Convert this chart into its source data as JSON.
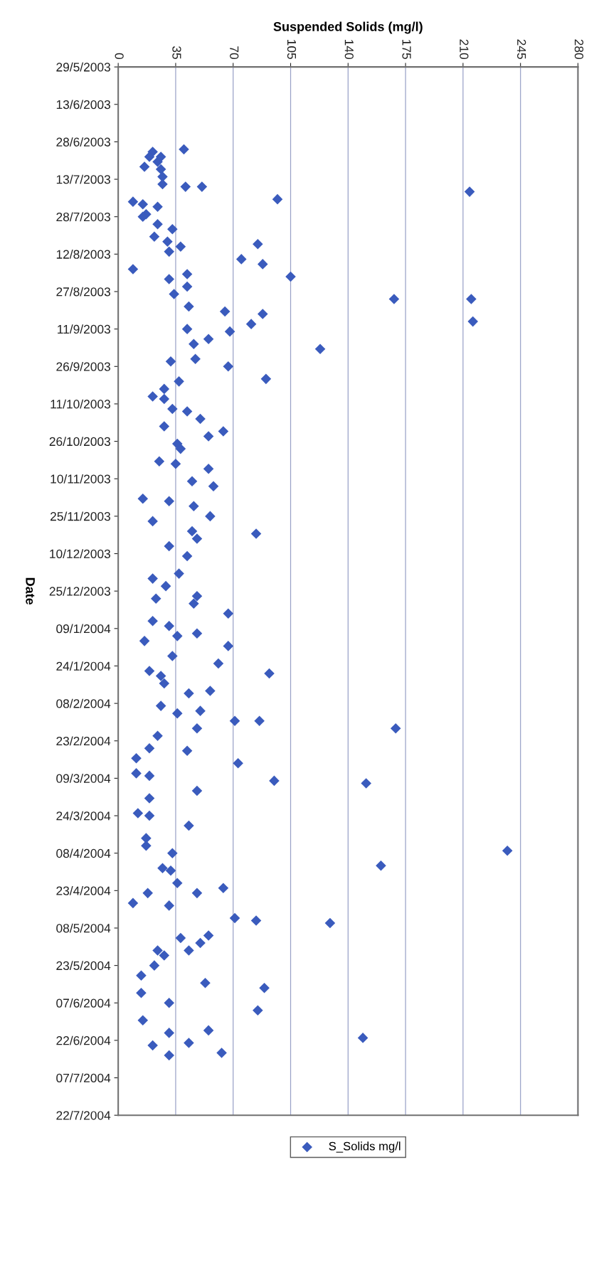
{
  "chart_data": {
    "type": "scatter",
    "orientation": "horizontal",
    "xlabel": "Suspended Solids (mg/l)",
    "ylabel": "Date",
    "xlim": [
      0,
      280
    ],
    "xticks": [
      0,
      35,
      70,
      105,
      140,
      175,
      210,
      245,
      280
    ],
    "ylim": [
      "2004-07-22",
      "2003-05-29"
    ],
    "yticks": [
      {
        "value": "2003-05-29",
        "label": "29/5/2003"
      },
      {
        "value": "2003-06-13",
        "label": "13/6/2003"
      },
      {
        "value": "2003-06-28",
        "label": "28/6/2003"
      },
      {
        "value": "2003-07-13",
        "label": "13/7/2003"
      },
      {
        "value": "2003-07-28",
        "label": "28/7/2003"
      },
      {
        "value": "2003-08-12",
        "label": "12/8/2003"
      },
      {
        "value": "2003-08-27",
        "label": "27/8/2003"
      },
      {
        "value": "2003-09-11",
        "label": "11/9/2003"
      },
      {
        "value": "2003-09-26",
        "label": "26/9/2003"
      },
      {
        "value": "2003-10-11",
        "label": "11/10/2003"
      },
      {
        "value": "2003-10-26",
        "label": "26/10/2003"
      },
      {
        "value": "2003-11-10",
        "label": "10/11/2003"
      },
      {
        "value": "2003-11-25",
        "label": "25/11/2003"
      },
      {
        "value": "2003-12-10",
        "label": "10/12/2003"
      },
      {
        "value": "2003-12-25",
        "label": "25/12/2003"
      },
      {
        "value": "2004-01-09",
        "label": "09/1/2004"
      },
      {
        "value": "2004-01-24",
        "label": "24/1/2004"
      },
      {
        "value": "2004-02-08",
        "label": "08/2/2004"
      },
      {
        "value": "2004-02-23",
        "label": "23/2/2004"
      },
      {
        "value": "2004-03-09",
        "label": "09/3/2004"
      },
      {
        "value": "2004-03-24",
        "label": "24/3/2004"
      },
      {
        "value": "2004-04-08",
        "label": "08/4/2004"
      },
      {
        "value": "2004-04-23",
        "label": "23/4/2004"
      },
      {
        "value": "2004-05-08",
        "label": "08/5/2004"
      },
      {
        "value": "2004-05-23",
        "label": "23/5/2004"
      },
      {
        "value": "2004-06-07",
        "label": "07/6/2004"
      },
      {
        "value": "2004-06-22",
        "label": "22/6/2004"
      },
      {
        "value": "2004-07-07",
        "label": "07/7/2004"
      },
      {
        "value": "2004-07-22",
        "label": "22/7/2004"
      }
    ],
    "grid": "x",
    "legend": "bottom",
    "marker": "diamond",
    "series": [
      {
        "name": "S_Solids mg/l",
        "color": "#3a5bbd",
        "x": [
          "2003-07-01",
          "2003-07-02",
          "2003-07-04",
          "2003-07-04",
          "2003-07-06",
          "2003-07-08",
          "2003-07-09",
          "2003-07-12",
          "2003-07-15",
          "2003-07-16",
          "2003-07-16",
          "2003-07-18",
          "2003-07-21",
          "2003-07-22",
          "2003-07-23",
          "2003-07-24",
          "2003-07-27",
          "2003-07-28",
          "2003-07-31",
          "2003-08-02",
          "2003-08-05",
          "2003-08-07",
          "2003-08-08",
          "2003-08-09",
          "2003-08-11",
          "2003-08-14",
          "2003-08-16",
          "2003-08-18",
          "2003-08-20",
          "2003-08-21",
          "2003-08-22",
          "2003-08-25",
          "2003-08-28",
          "2003-08-30",
          "2003-08-30",
          "2003-09-02",
          "2003-09-04",
          "2003-09-05",
          "2003-09-08",
          "2003-09-09",
          "2003-09-11",
          "2003-09-12",
          "2003-09-15",
          "2003-09-17",
          "2003-09-19",
          "2003-09-23",
          "2003-09-24",
          "2003-09-26",
          "2003-10-01",
          "2003-10-02",
          "2003-10-05",
          "2003-10-08",
          "2003-10-09",
          "2003-10-13",
          "2003-10-14",
          "2003-10-17",
          "2003-10-20",
          "2003-10-22",
          "2003-10-24",
          "2003-10-27",
          "2003-10-29",
          "2003-11-03",
          "2003-11-04",
          "2003-11-06",
          "2003-11-11",
          "2003-11-13",
          "2003-11-18",
          "2003-11-19",
          "2003-11-21",
          "2003-11-25",
          "2003-11-27",
          "2003-12-01",
          "2003-12-02",
          "2003-12-04",
          "2003-12-07",
          "2003-12-11",
          "2003-12-18",
          "2003-12-20",
          "2003-12-23",
          "2003-12-27",
          "2003-12-28",
          "2003-12-30",
          "2004-01-03",
          "2004-01-06",
          "2004-01-08",
          "2004-01-11",
          "2004-01-12",
          "2004-01-14",
          "2004-01-16",
          "2004-01-20",
          "2004-01-23",
          "2004-01-26",
          "2004-01-27",
          "2004-01-28",
          "2004-01-31",
          "2004-02-03",
          "2004-02-04",
          "2004-02-09",
          "2004-02-11",
          "2004-02-12",
          "2004-02-15",
          "2004-02-15",
          "2004-02-18",
          "2004-02-18",
          "2004-02-21",
          "2004-02-26",
          "2004-02-27",
          "2004-03-01",
          "2004-03-03",
          "2004-03-07",
          "2004-03-08",
          "2004-03-10",
          "2004-03-11",
          "2004-03-14",
          "2004-03-17",
          "2004-03-23",
          "2004-03-24",
          "2004-03-28",
          "2004-04-02",
          "2004-04-05",
          "2004-04-07",
          "2004-04-08",
          "2004-04-13",
          "2004-04-14",
          "2004-04-15",
          "2004-04-20",
          "2004-04-22",
          "2004-04-24",
          "2004-04-24",
          "2004-04-28",
          "2004-04-29",
          "2004-05-04",
          "2004-05-05",
          "2004-05-06",
          "2004-05-11",
          "2004-05-12",
          "2004-05-14",
          "2004-05-17",
          "2004-05-17",
          "2004-05-19",
          "2004-05-23",
          "2004-05-27",
          "2004-05-30",
          "2004-06-01",
          "2004-06-03",
          "2004-06-07",
          "2004-06-10",
          "2004-06-14",
          "2004-06-18",
          "2004-06-19",
          "2004-06-21",
          "2004-06-23",
          "2004-06-24",
          "2004-06-27",
          "2004-06-28"
        ],
        "values": [
          40,
          21,
          19,
          26,
          24,
          16,
          26,
          27,
          27,
          41,
          51,
          214,
          97,
          9,
          15,
          24,
          17,
          15,
          24,
          33,
          22,
          30,
          85,
          38,
          31,
          75,
          88,
          9,
          42,
          105,
          31,
          42,
          34,
          168,
          215,
          43,
          65,
          88,
          216,
          81,
          42,
          68,
          55,
          46,
          123,
          47,
          32,
          67,
          90,
          37,
          28,
          21,
          28,
          33,
          42,
          50,
          28,
          64,
          55,
          36,
          38,
          25,
          35,
          55,
          45,
          58,
          15,
          31,
          46,
          56,
          21,
          45,
          84,
          48,
          31,
          42,
          37,
          21,
          29,
          48,
          23,
          46,
          67,
          21,
          31,
          48,
          36,
          16,
          67,
          33,
          61,
          19,
          92,
          26,
          28,
          56,
          43,
          26,
          50,
          36,
          71,
          86,
          48,
          169,
          24,
          19,
          42,
          11,
          73,
          11,
          19,
          95,
          151,
          48,
          19,
          12,
          19,
          43,
          17,
          17,
          237,
          33,
          160,
          27,
          32,
          36,
          64,
          48,
          18,
          9,
          31,
          71,
          84,
          129,
          55,
          38,
          50,
          43,
          24,
          28,
          22,
          14,
          53,
          89,
          14,
          31,
          85,
          15,
          55,
          31,
          149,
          43,
          21,
          63,
          31
        ]
      }
    ]
  }
}
